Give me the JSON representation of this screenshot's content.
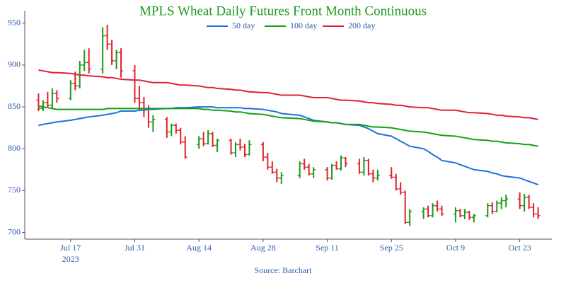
{
  "chart_data": {
    "type": "ohlc",
    "title": "MPLS Wheat Daily Futures Front Month Continuous",
    "source": "Source: Barchart",
    "year_label": "2023",
    "up_color": "#1a9a1a",
    "down_color": "#e0202a",
    "xlim": [
      "2023-07-07",
      "2023-10-30"
    ],
    "xticks": [
      {
        "value": "2023-07-17",
        "label": "Jul 17"
      },
      {
        "value": "2023-07-31",
        "label": "Jul 31"
      },
      {
        "value": "2023-08-14",
        "label": "Aug 14"
      },
      {
        "value": "2023-08-28",
        "label": "Aug 28"
      },
      {
        "value": "2023-09-11",
        "label": "Sep 11"
      },
      {
        "value": "2023-09-25",
        "label": "Sep 25"
      },
      {
        "value": "2023-10-09",
        "label": "Oct 9"
      },
      {
        "value": "2023-10-23",
        "label": "Oct 23"
      }
    ],
    "ylim": [
      692,
      965
    ],
    "yticks": [
      700,
      750,
      800,
      850,
      900,
      950
    ],
    "x": [
      "2023-07-10",
      "2023-07-11",
      "2023-07-12",
      "2023-07-13",
      "2023-07-14",
      "2023-07-17",
      "2023-07-18",
      "2023-07-19",
      "2023-07-20",
      "2023-07-21",
      "2023-07-24",
      "2023-07-25",
      "2023-07-26",
      "2023-07-27",
      "2023-07-28",
      "2023-07-31",
      "2023-08-01",
      "2023-08-02",
      "2023-08-03",
      "2023-08-04",
      "2023-08-07",
      "2023-08-08",
      "2023-08-09",
      "2023-08-10",
      "2023-08-11",
      "2023-08-14",
      "2023-08-15",
      "2023-08-16",
      "2023-08-17",
      "2023-08-18",
      "2023-08-21",
      "2023-08-22",
      "2023-08-23",
      "2023-08-24",
      "2023-08-25",
      "2023-08-28",
      "2023-08-29",
      "2023-08-30",
      "2023-08-31",
      "2023-09-01",
      "2023-09-05",
      "2023-09-06",
      "2023-09-07",
      "2023-09-08",
      "2023-09-11",
      "2023-09-12",
      "2023-09-13",
      "2023-09-14",
      "2023-09-15",
      "2023-09-18",
      "2023-09-19",
      "2023-09-20",
      "2023-09-21",
      "2023-09-22",
      "2023-09-25",
      "2023-09-26",
      "2023-09-27",
      "2023-09-28",
      "2023-09-29",
      "2023-10-02",
      "2023-10-03",
      "2023-10-04",
      "2023-10-05",
      "2023-10-06",
      "2023-10-09",
      "2023-10-10",
      "2023-10-11",
      "2023-10-12",
      "2023-10-13",
      "2023-10-16",
      "2023-10-17",
      "2023-10-18",
      "2023-10-19",
      "2023-10-20",
      "2023-10-23",
      "2023-10-24",
      "2023-10-25",
      "2023-10-26",
      "2023-10-27"
    ],
    "open": [
      858,
      848,
      855,
      852,
      866,
      860,
      878,
      875,
      900,
      903,
      895,
      935,
      925,
      905,
      915,
      893,
      860,
      855,
      848,
      832,
      835,
      820,
      828,
      822,
      808,
      805,
      812,
      806,
      818,
      804,
      810,
      795,
      805,
      802,
      793,
      805,
      790,
      778,
      772,
      765,
      768,
      782,
      778,
      770,
      775,
      765,
      780,
      776,
      789,
      782,
      772,
      786,
      770,
      765,
      768,
      766,
      752,
      748,
      712,
      725,
      728,
      720,
      732,
      728,
      722,
      726,
      720,
      724,
      718,
      720,
      732,
      725,
      735,
      738,
      740,
      732,
      742,
      730,
      722
    ],
    "high": [
      866,
      858,
      868,
      872,
      870,
      882,
      892,
      905,
      918,
      920,
      945,
      948,
      930,
      918,
      920,
      900,
      875,
      862,
      852,
      840,
      838,
      830,
      830,
      825,
      815,
      815,
      820,
      822,
      820,
      812,
      812,
      808,
      812,
      806,
      810,
      808,
      795,
      785,
      776,
      772,
      785,
      788,
      782,
      778,
      778,
      782,
      785,
      792,
      790,
      788,
      790,
      788,
      775,
      775,
      778,
      770,
      760,
      750,
      728,
      730,
      732,
      735,
      738,
      732,
      730,
      728,
      728,
      726,
      722,
      735,
      736,
      738,
      742,
      745,
      748,
      746,
      745,
      735,
      730
    ],
    "low": [
      845,
      845,
      850,
      848,
      855,
      858,
      870,
      872,
      893,
      890,
      890,
      918,
      900,
      895,
      885,
      855,
      845,
      838,
      825,
      820,
      813,
      815,
      818,
      805,
      788,
      800,
      803,
      805,
      802,
      796,
      793,
      790,
      798,
      790,
      792,
      785,
      775,
      770,
      760,
      758,
      765,
      775,
      768,
      765,
      762,
      763,
      775,
      774,
      778,
      770,
      768,
      768,
      760,
      762,
      764,
      750,
      745,
      710,
      708,
      716,
      718,
      718,
      725,
      720,
      712,
      718,
      716,
      715,
      712,
      718,
      722,
      724,
      728,
      730,
      728,
      725,
      728,
      718,
      716
    ],
    "close": [
      848,
      855,
      852,
      866,
      860,
      878,
      875,
      900,
      903,
      895,
      935,
      925,
      905,
      915,
      893,
      860,
      855,
      848,
      832,
      835,
      820,
      828,
      822,
      808,
      790,
      812,
      806,
      818,
      804,
      810,
      795,
      805,
      802,
      793,
      805,
      790,
      778,
      772,
      765,
      768,
      782,
      778,
      770,
      775,
      765,
      780,
      776,
      789,
      782,
      772,
      786,
      770,
      765,
      768,
      766,
      752,
      748,
      712,
      725,
      728,
      720,
      732,
      728,
      722,
      726,
      720,
      724,
      718,
      720,
      732,
      725,
      735,
      738,
      740,
      732,
      742,
      730,
      722,
      720
    ],
    "series": [
      {
        "name": "50 day",
        "color": "#1f6fe0",
        "values": [
          828,
          829,
          830,
          831,
          832,
          834,
          835,
          836,
          837,
          838,
          840,
          841,
          842,
          843,
          845,
          845,
          846,
          846,
          847,
          847,
          848,
          848,
          849,
          849,
          849,
          850,
          850,
          850,
          850,
          849,
          849,
          849,
          849,
          848,
          848,
          847,
          846,
          845,
          844,
          842,
          840,
          838,
          836,
          834,
          832,
          831,
          831,
          830,
          829,
          828,
          826,
          824,
          821,
          818,
          815,
          812,
          809,
          806,
          803,
          800,
          797,
          793,
          790,
          786,
          783,
          781,
          779,
          777,
          775,
          773,
          771,
          770,
          768,
          767,
          765,
          763,
          761,
          759,
          757
        ]
      },
      {
        "name": "100 day",
        "color": "#13a013",
        "values": [
          851,
          850,
          849,
          848,
          847,
          847,
          847,
          847,
          847,
          847,
          847,
          848,
          848,
          848,
          848,
          848,
          848,
          848,
          848,
          848,
          848,
          848,
          848,
          848,
          848,
          848,
          847,
          847,
          846,
          846,
          845,
          844,
          844,
          843,
          842,
          841,
          840,
          839,
          838,
          837,
          836,
          835,
          834,
          833,
          832,
          831,
          831,
          830,
          829,
          829,
          828,
          827,
          826,
          826,
          825,
          824,
          823,
          822,
          821,
          820,
          819,
          818,
          817,
          816,
          815,
          814,
          813,
          812,
          811,
          810,
          809,
          809,
          808,
          807,
          806,
          805,
          805,
          804,
          803
        ]
      },
      {
        "name": "200 day",
        "color": "#e0203a",
        "values": [
          894,
          893,
          892,
          891,
          891,
          890,
          889,
          888,
          888,
          887,
          886,
          885,
          885,
          884,
          883,
          882,
          882,
          881,
          880,
          879,
          879,
          878,
          877,
          876,
          876,
          875,
          874,
          873,
          873,
          872,
          871,
          870,
          870,
          869,
          868,
          867,
          867,
          866,
          865,
          864,
          864,
          863,
          862,
          861,
          861,
          860,
          859,
          858,
          858,
          857,
          856,
          855,
          855,
          854,
          853,
          852,
          852,
          851,
          850,
          849,
          849,
          848,
          847,
          846,
          846,
          845,
          844,
          843,
          843,
          842,
          841,
          840,
          840,
          839,
          838,
          837,
          837,
          836,
          835
        ]
      }
    ]
  }
}
